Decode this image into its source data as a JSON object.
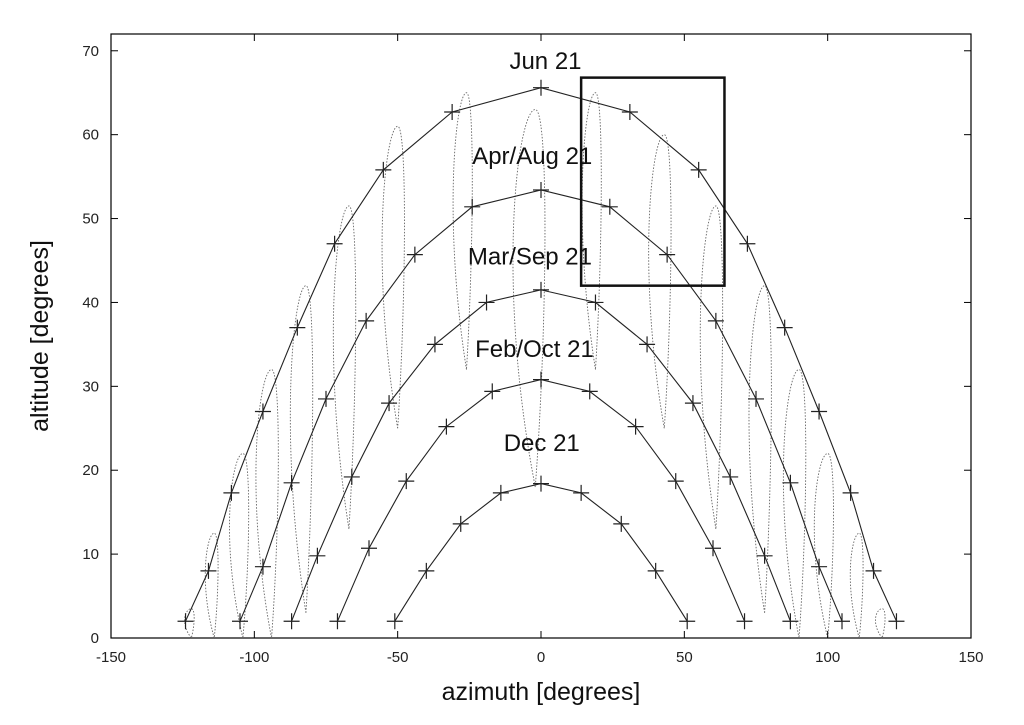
{
  "chart_data": {
    "type": "line",
    "xlabel": "azimuth [degrees]",
    "ylabel": "altitude [degrees]",
    "xlim": [
      -150,
      150
    ],
    "ylim": [
      0,
      72
    ],
    "xticks": [
      -150,
      -100,
      -50,
      0,
      50,
      100,
      150
    ],
    "yticks": [
      0,
      10,
      20,
      30,
      40,
      50,
      60,
      70
    ],
    "grid": false,
    "series": [
      {
        "name": "Jun 21",
        "points": [
          [
            -124,
            2
          ],
          [
            -116,
            8
          ],
          [
            -108,
            17.3
          ],
          [
            -97,
            27
          ],
          [
            -85,
            37
          ],
          [
            -72,
            47
          ],
          [
            -55,
            55.8
          ],
          [
            -31,
            62.7
          ],
          [
            0,
            65.6
          ],
          [
            31,
            62.7
          ],
          [
            55,
            55.8
          ],
          [
            72,
            47
          ],
          [
            85,
            37
          ],
          [
            97,
            27
          ],
          [
            108,
            17.3
          ],
          [
            116,
            8
          ],
          [
            124,
            2
          ]
        ]
      },
      {
        "name": "Apr/Aug 21",
        "points": [
          [
            -105,
            2
          ],
          [
            -97,
            8.5
          ],
          [
            -87,
            18.5
          ],
          [
            -75,
            28.5
          ],
          [
            -61,
            37.8
          ],
          [
            -44,
            45.7
          ],
          [
            -24,
            51.4
          ],
          [
            0,
            53.4
          ],
          [
            24,
            51.4
          ],
          [
            44,
            45.7
          ],
          [
            61,
            37.8
          ],
          [
            75,
            28.5
          ],
          [
            87,
            18.5
          ],
          [
            97,
            8.5
          ],
          [
            105,
            2
          ]
        ]
      },
      {
        "name": "Mar/Sep 21",
        "points": [
          [
            -87,
            2
          ],
          [
            -78,
            9.8
          ],
          [
            -66,
            19.2
          ],
          [
            -53,
            28
          ],
          [
            -37,
            35
          ],
          [
            -19,
            40
          ],
          [
            0,
            41.5
          ],
          [
            19,
            40
          ],
          [
            37,
            35
          ],
          [
            53,
            28
          ],
          [
            66,
            19.2
          ],
          [
            78,
            9.8
          ],
          [
            87,
            2
          ]
        ]
      },
      {
        "name": "Feb/Oct 21",
        "points": [
          [
            -71,
            2
          ],
          [
            -60,
            10.7
          ],
          [
            -47,
            18.7
          ],
          [
            -33,
            25.2
          ],
          [
            -17,
            29.4
          ],
          [
            0,
            30.8
          ],
          [
            17,
            29.4
          ],
          [
            33,
            25.2
          ],
          [
            47,
            18.7
          ],
          [
            60,
            10.7
          ],
          [
            71,
            2
          ]
        ]
      },
      {
        "name": "Dec 21",
        "points": [
          [
            -51,
            2
          ],
          [
            -40,
            8
          ],
          [
            -28,
            13.6
          ],
          [
            -14,
            17.3
          ],
          [
            0,
            18.4
          ],
          [
            14,
            17.3
          ],
          [
            28,
            13.6
          ],
          [
            40,
            8
          ],
          [
            51,
            2
          ]
        ]
      }
    ],
    "curve_labels": [
      {
        "text": "Jun 21",
        "x": -11,
        "y": 67.8
      },
      {
        "text": "Apr/Aug 21",
        "x": -24,
        "y": 56.5
      },
      {
        "text": "Mar/Sep 21",
        "x": -25.5,
        "y": 44.5
      },
      {
        "text": "Feb/Oct 21",
        "x": -23,
        "y": 33.5
      },
      {
        "text": "Dec 21",
        "x": -13,
        "y": 22.3
      }
    ],
    "analemmas": [
      {
        "x": -122,
        "y": 0,
        "w": 3,
        "h": 3.5
      },
      {
        "x": -114,
        "y": 0,
        "w": 4,
        "h": 12.5
      },
      {
        "x": -104,
        "y": 0,
        "w": 6,
        "h": 22
      },
      {
        "x": -94,
        "y": 0,
        "w": 7,
        "h": 32
      },
      {
        "x": -82,
        "y": 3,
        "w": 7,
        "h": 39
      },
      {
        "x": -67,
        "y": 13,
        "w": 7,
        "h": 38.5
      },
      {
        "x": -50,
        "y": 25,
        "w": 7,
        "h": 36
      },
      {
        "x": -26,
        "y": 32,
        "w": 6,
        "h": 33
      },
      {
        "x": 19,
        "y": 32,
        "w": 6,
        "h": 33
      },
      {
        "x": 43,
        "y": 25,
        "w": 7,
        "h": 35
      },
      {
        "x": 61,
        "y": 13,
        "w": 7,
        "h": 38.5
      },
      {
        "x": 78,
        "y": 3,
        "w": 7,
        "h": 39
      },
      {
        "x": 90,
        "y": 0,
        "w": 7,
        "h": 32
      },
      {
        "x": 100,
        "y": 0,
        "w": 6,
        "h": 22
      },
      {
        "x": 111,
        "y": 0,
        "w": 4,
        "h": 12.5
      },
      {
        "x": 119,
        "y": 0,
        "w": 3,
        "h": 3.5
      },
      {
        "x": -2,
        "y": 18,
        "w": 10,
        "h": 45
      }
    ],
    "highlight_box": {
      "x0": 14,
      "x1": 64,
      "y0": 42,
      "y1": 66.8
    }
  }
}
